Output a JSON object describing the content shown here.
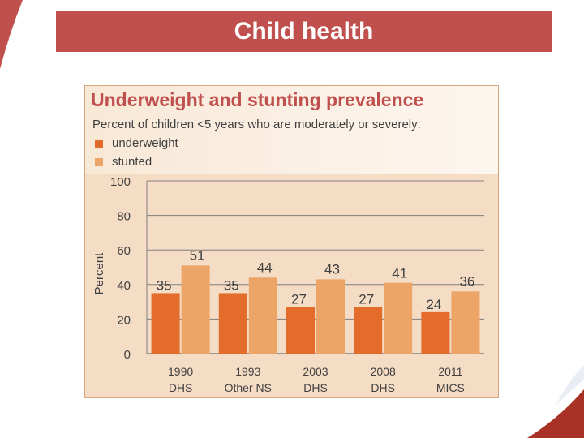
{
  "slide": {
    "title": "Child health"
  },
  "colors": {
    "title_bar": "#c0504d",
    "underweight": "#e46c2b",
    "stunted": "#eca467",
    "panel": "#f5dcc4",
    "grid": "#7f7f7f",
    "chart_title": "#c0504d"
  },
  "chart_data": {
    "type": "bar",
    "title": "Underweight and stunting prevalence",
    "subtitle": "Percent of children <5 years who are moderately or severely:",
    "ylabel": "Percent",
    "xlabel": "",
    "ylim": [
      0,
      100
    ],
    "yticks": [
      0,
      20,
      40,
      60,
      80,
      100
    ],
    "grid": true,
    "legend_position": "top-left",
    "categories": [
      [
        "1990",
        "DHS"
      ],
      [
        "1993",
        "Other NS"
      ],
      [
        "2003",
        "DHS"
      ],
      [
        "2008",
        "DHS"
      ],
      [
        "2011",
        "MICS"
      ]
    ],
    "series": [
      {
        "name": "underweight",
        "values": [
          35,
          35,
          27,
          27,
          24
        ]
      },
      {
        "name": "stunted",
        "values": [
          51,
          44,
          43,
          41,
          36
        ]
      }
    ]
  }
}
